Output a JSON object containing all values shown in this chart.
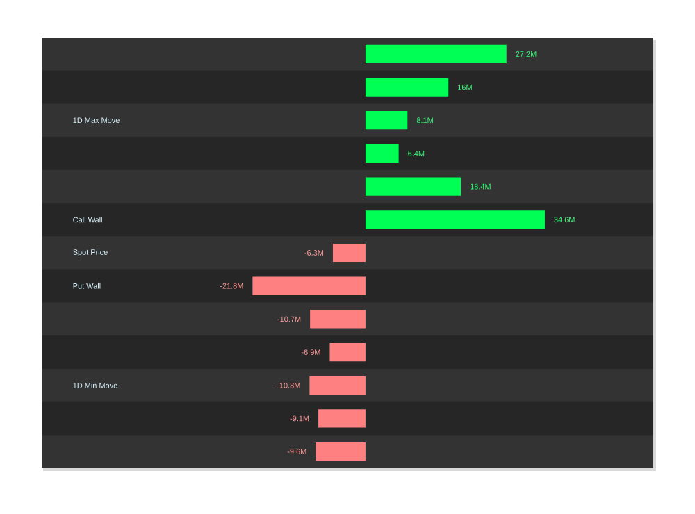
{
  "chart_data": {
    "type": "bar",
    "orientation": "horizontal",
    "categories": [
      null,
      null,
      "1D Max Move",
      null,
      null,
      "Call Wall",
      "Spot Price",
      "Put Wall",
      null,
      null,
      "1D Min Move",
      null,
      null
    ],
    "values": [
      27.2,
      16,
      8.1,
      6.4,
      18.4,
      34.6,
      -6.3,
      -21.8,
      -10.7,
      -6.9,
      -10.8,
      -9.1,
      -9.6
    ],
    "colors": [
      "#00ff55",
      "#00ff55",
      "#00ff55",
      "#00ff55",
      "#00ff55",
      "#00ff55",
      "#ff8080",
      "#ff8080",
      "#ff8080",
      "#ff8080",
      "#ff8080",
      "#ff8080",
      "#ff8080"
    ],
    "value_labels": [
      "27.2M",
      "16M",
      "8.1M",
      "6.4M",
      "18.4M",
      "34.6M",
      "-6.3M",
      "-21.8M",
      "-10.7M",
      "-6.9M",
      "-10.8M",
      "-9.1M",
      "-9.6M"
    ]
  }
}
